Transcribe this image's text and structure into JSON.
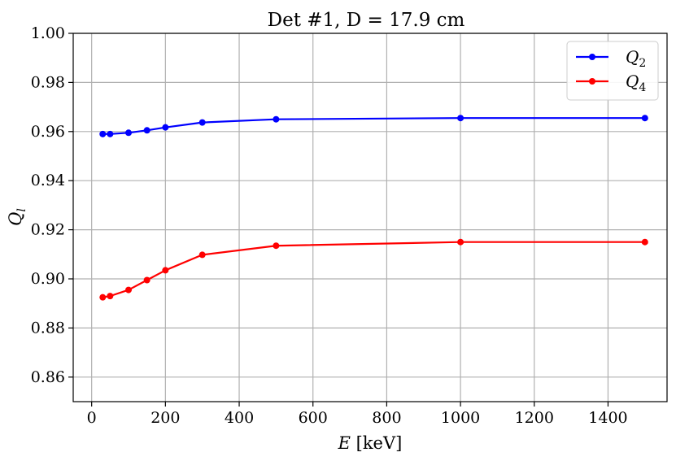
{
  "chart_data": {
    "type": "line",
    "title": "Det #1, D = 17.9 cm",
    "xlabel": "E [keV]",
    "ylabel": "Q_l",
    "xlim": [
      -50,
      1560
    ],
    "ylim": [
      0.85,
      1.0
    ],
    "xticks": [
      0,
      200,
      400,
      600,
      800,
      1000,
      1200,
      1400
    ],
    "yticks": [
      0.86,
      0.88,
      0.9,
      0.92,
      0.94,
      0.96,
      0.98,
      1.0
    ],
    "xtick_labels": [
      "0",
      "200",
      "400",
      "600",
      "800",
      "1000",
      "1200",
      "1400"
    ],
    "ytick_labels": [
      "0.86",
      "0.88",
      "0.90",
      "0.92",
      "0.94",
      "0.96",
      "0.98",
      "1.00"
    ],
    "grid": true,
    "legend_position": "top-right",
    "x": [
      30,
      50,
      100,
      150,
      200,
      300,
      500,
      1000,
      1500
    ],
    "series": [
      {
        "name": "Q",
        "subscript": "2",
        "color": "#0000ff",
        "values": [
          0.959,
          0.959,
          0.9595,
          0.9605,
          0.9617,
          0.9637,
          0.965,
          0.9655,
          0.9655
        ]
      },
      {
        "name": "Q",
        "subscript": "4",
        "color": "#ff0000",
        "values": [
          0.8925,
          0.893,
          0.8955,
          0.8995,
          0.9035,
          0.9098,
          0.9135,
          0.915,
          0.915
        ]
      }
    ]
  }
}
